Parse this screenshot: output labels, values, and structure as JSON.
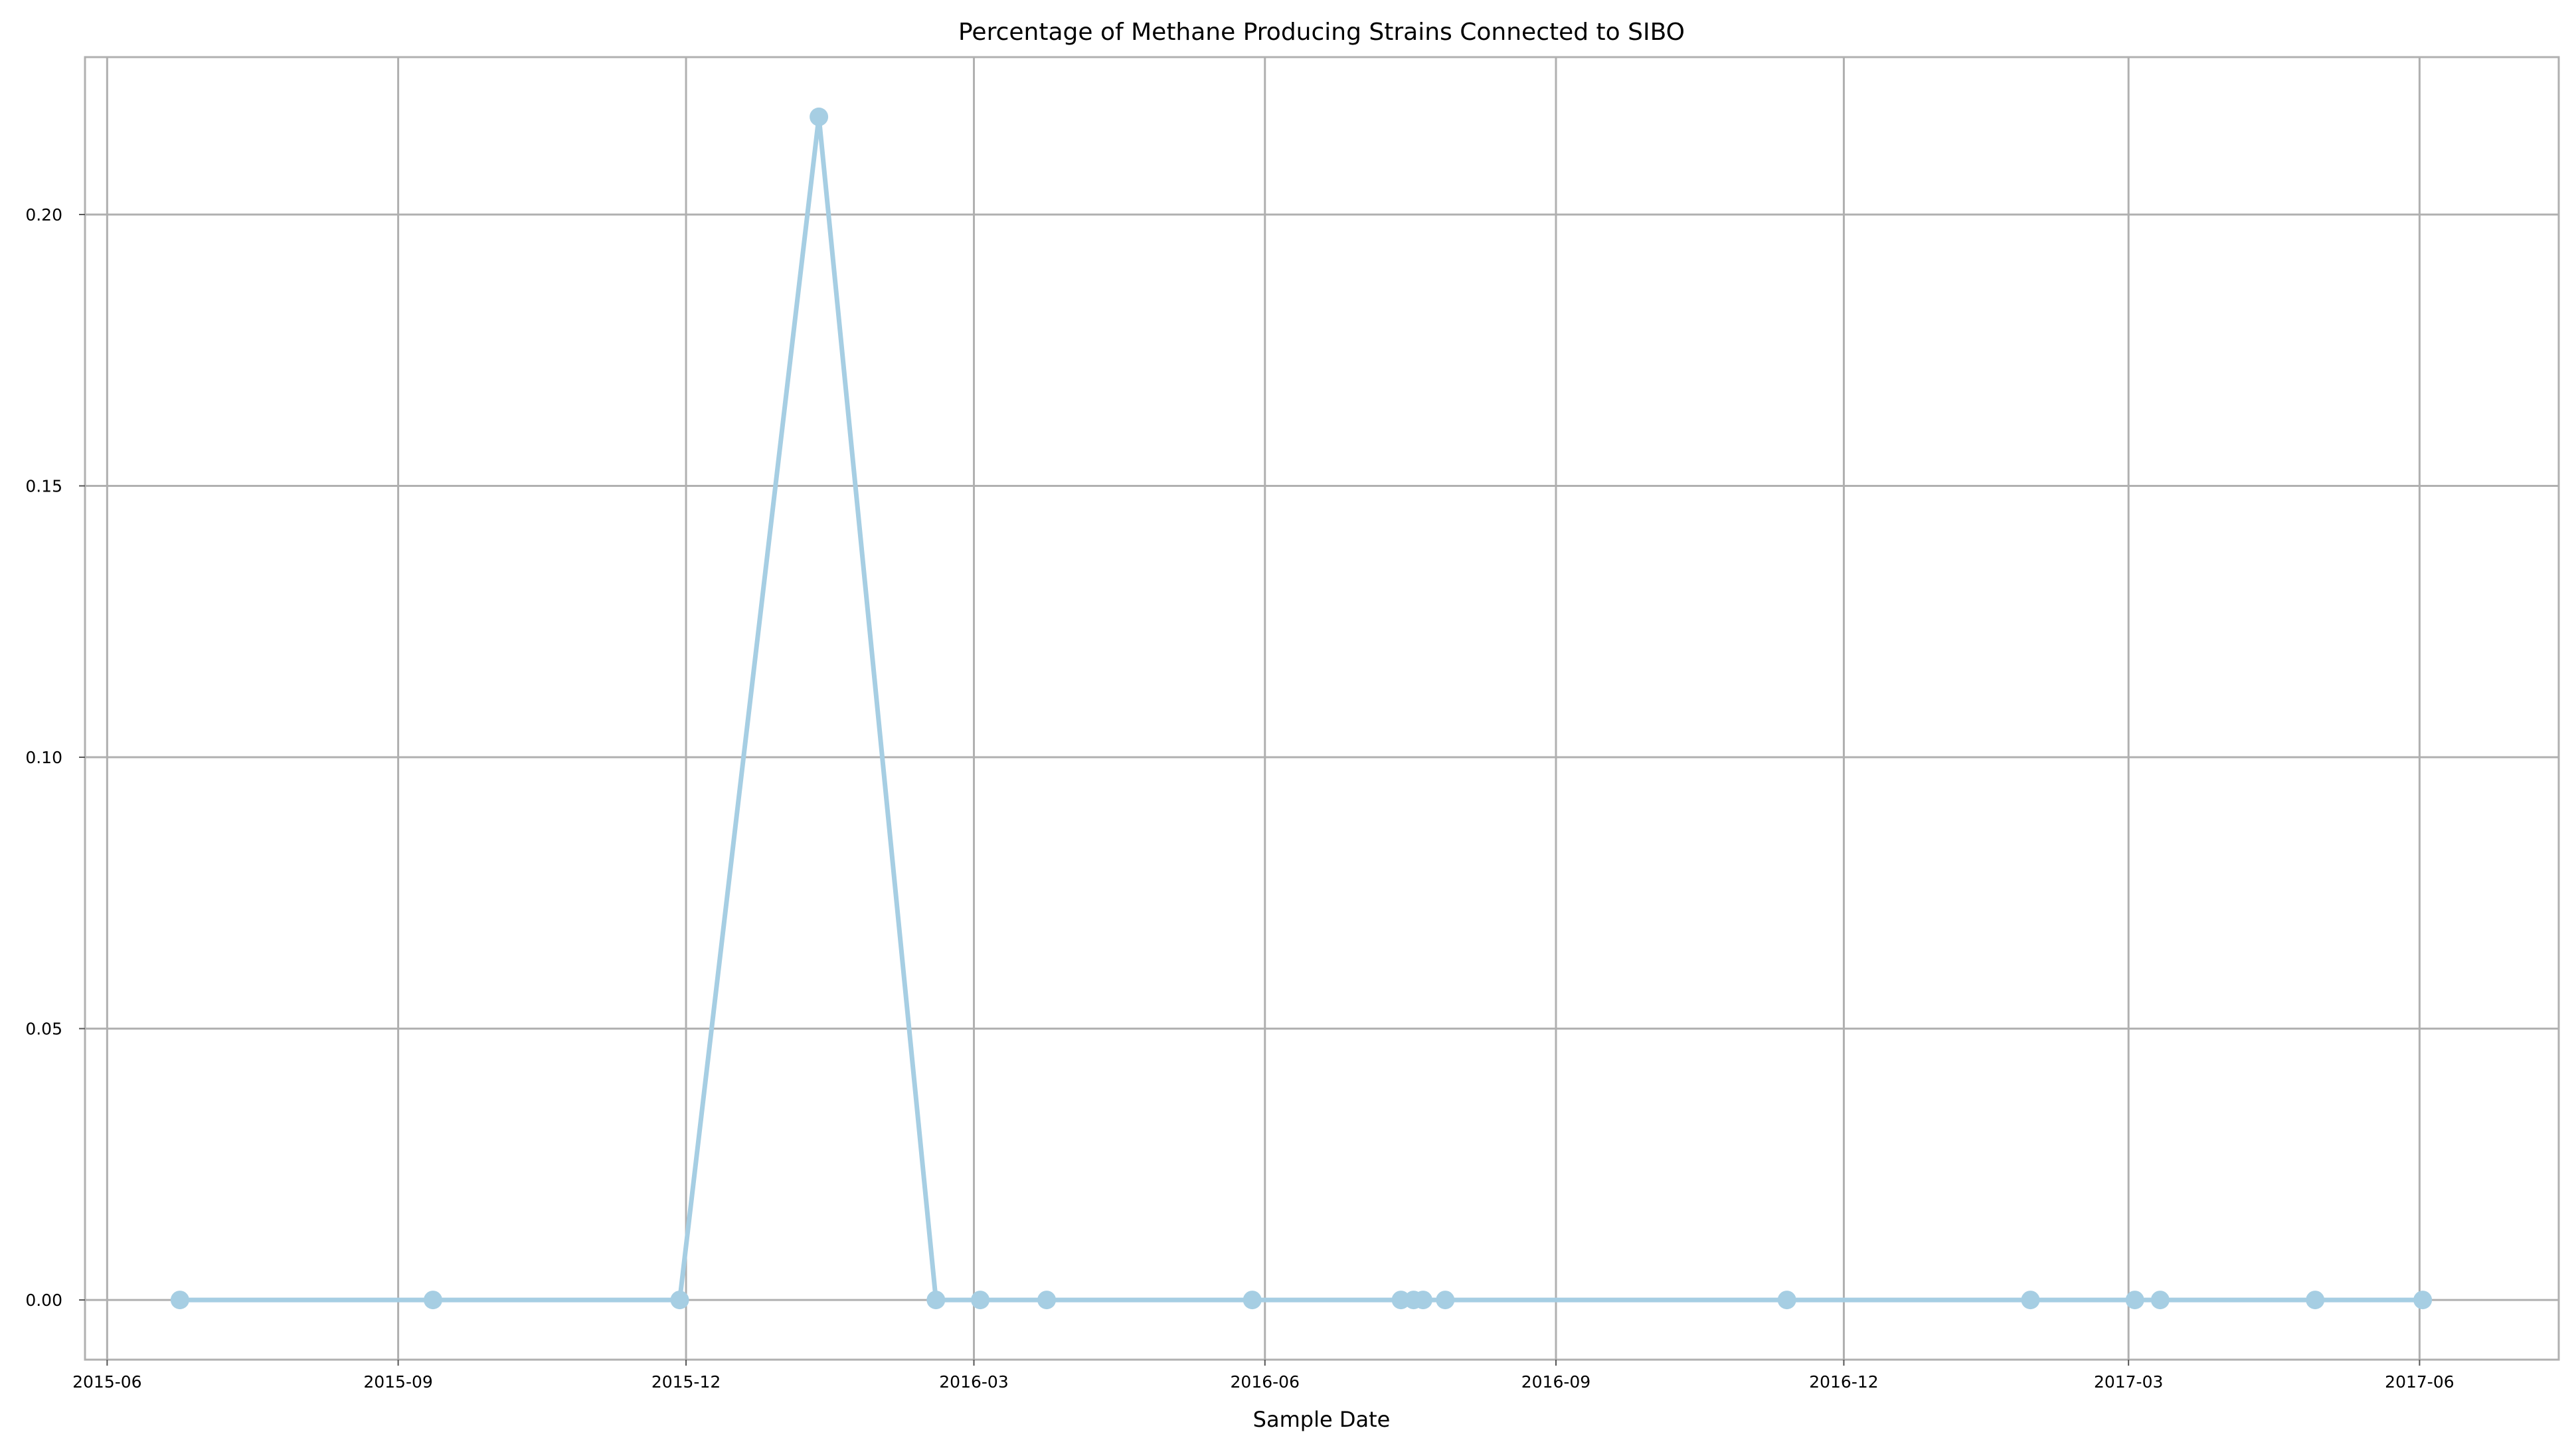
{
  "chart_data": {
    "type": "line",
    "title": "Percentage of Methane Producing Strains Connected to SIBO",
    "xlabel": "Sample Date",
    "ylabel": "",
    "x_type": "date",
    "xlim": [
      "2015-05-25",
      "2017-07-15"
    ],
    "ylim": [
      -0.011,
      0.229
    ],
    "xticks": [
      "2015-06-01",
      "2015-09-01",
      "2015-12-01",
      "2016-03-01",
      "2016-06-01",
      "2016-09-01",
      "2016-12-01",
      "2017-03-01",
      "2017-06-01"
    ],
    "xtick_labels": [
      "2015-06",
      "2015-09",
      "2015-12",
      "2016-03",
      "2016-06",
      "2016-09",
      "2016-12",
      "2017-03",
      "2017-06"
    ],
    "yticks": [
      0.0,
      0.05,
      0.1,
      0.15,
      0.2
    ],
    "ytick_labels": [
      "0.00",
      "0.05",
      "0.10",
      "0.15",
      "0.20"
    ],
    "grid": true,
    "series": [
      {
        "color": "#a6cee3",
        "x": [
          "2015-06-24",
          "2015-09-12",
          "2015-11-29",
          "2016-01-12",
          "2016-02-18",
          "2016-03-03",
          "2016-03-24",
          "2016-05-28",
          "2016-07-14",
          "2016-07-18",
          "2016-07-21",
          "2016-07-28",
          "2016-11-13",
          "2017-01-29",
          "2017-03-03",
          "2017-03-11",
          "2017-04-29",
          "2017-06-02"
        ],
        "y": [
          0.0,
          0.0,
          0.0,
          0.218,
          0.0,
          0.0,
          0.0,
          0.0,
          0.0,
          0.0,
          0.0,
          0.0,
          0.0,
          0.0,
          0.0,
          0.0,
          0.0,
          0.0
        ]
      }
    ]
  }
}
